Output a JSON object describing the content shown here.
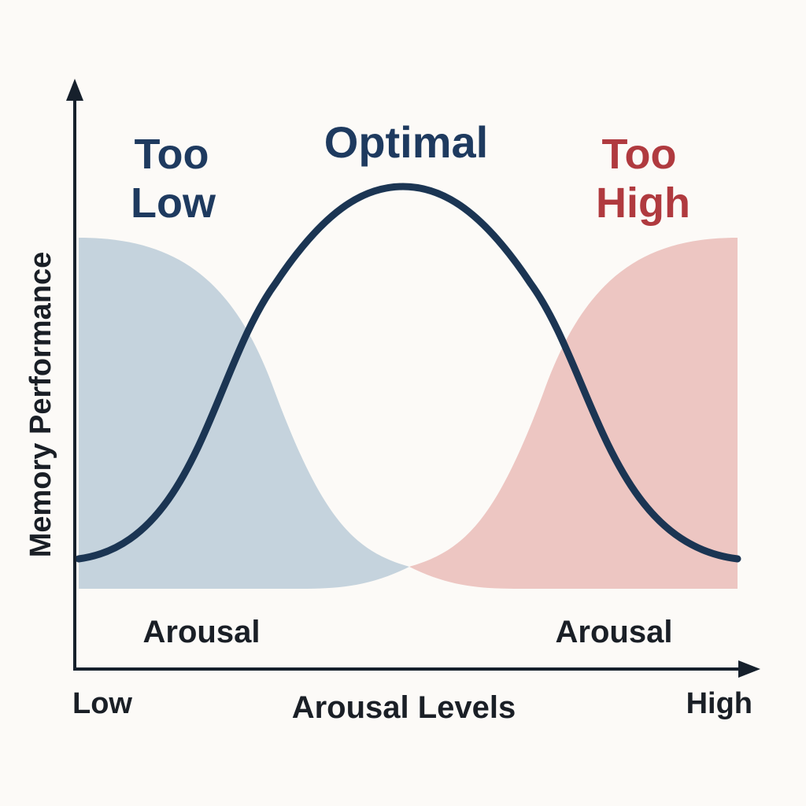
{
  "diagram": {
    "y_axis_label": "Memory Performance",
    "x_axis_label": "Arousal Levels",
    "x_min_label": "Low",
    "x_max_label": "High",
    "zones": {
      "low": {
        "title_line1": "Too",
        "title_line2": "Low",
        "sub_label": "Arousal",
        "title_color": "#1e3a5f",
        "fill_color": "#c5d3dd"
      },
      "optimal": {
        "title": "Optimal",
        "color": "#1e3a5f"
      },
      "high": {
        "title_line1": "Too",
        "title_line2": "High",
        "sub_label": "Arousal",
        "title_color": "#b03a3f",
        "fill_color": "#edc6c2"
      }
    },
    "curve_color": "#1b3553",
    "axis_color": "#16202c",
    "text_color": "#1a1f26"
  }
}
